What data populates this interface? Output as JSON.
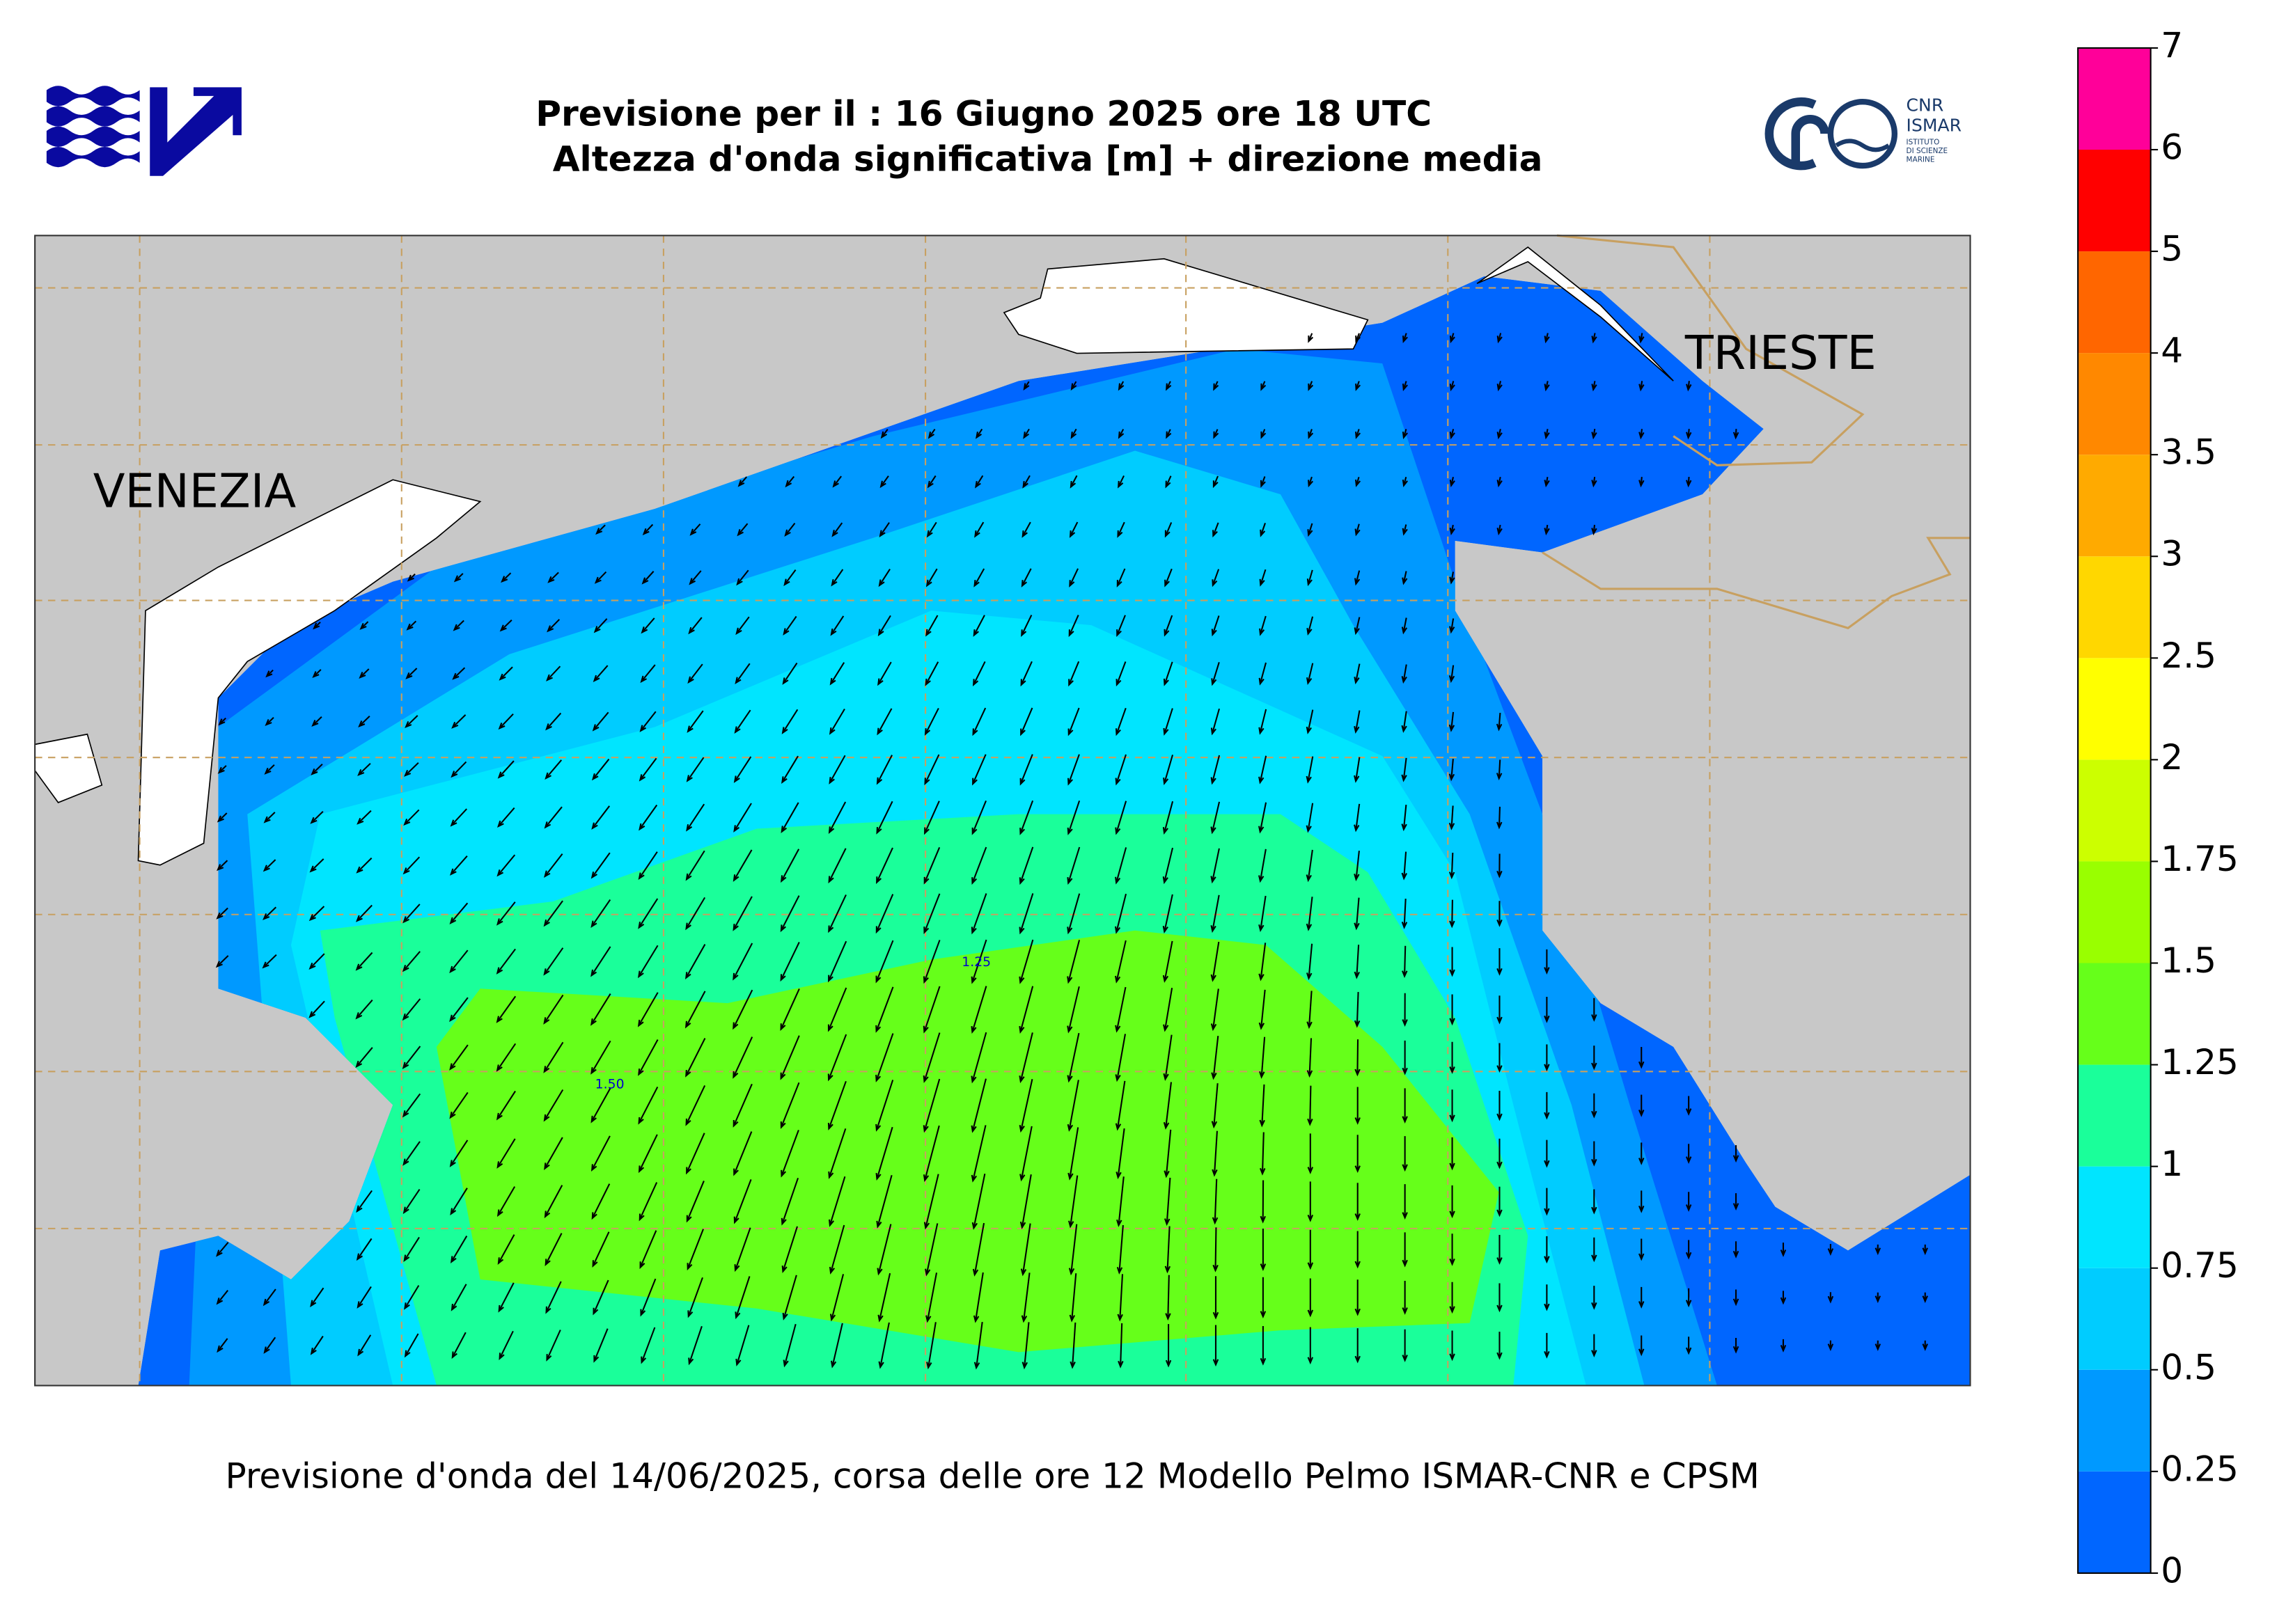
{
  "header": {
    "title_line1": "Previsione per il : 16 Giugno 2025 ore 18 UTC",
    "title_line2": "Altezza d'onda significativa [m] + direzione media"
  },
  "logo": {
    "name": "CNR",
    "sub": "ISMAR",
    "institute": [
      "ISTITUTO",
      "DI SCIENZE",
      "MARINE"
    ]
  },
  "map": {
    "labels": [
      "VENEZIA",
      "TRIESTE"
    ],
    "contour_labels": [
      "1.25",
      "1.50"
    ]
  },
  "footer": "Previsione d'onda del 14/06/2025, corsa delle ore 12 Modello Pelmo ISMAR-CNR e CPSM",
  "colorbar": {
    "ticks": [
      0,
      0.25,
      0.5,
      0.75,
      1,
      1.25,
      1.5,
      1.75,
      2,
      2.5,
      3,
      3.5,
      4,
      5,
      6,
      7
    ],
    "colors": [
      "#0066ff",
      "#0099ff",
      "#00ccff",
      "#00e5ff",
      "#1aff9a",
      "#66ff1a",
      "#99ff00",
      "#ccff00",
      "#ffff00",
      "#ffd700",
      "#ffaa00",
      "#ff8800",
      "#ff6600",
      "#ff0000",
      "#ff0099"
    ]
  }
}
